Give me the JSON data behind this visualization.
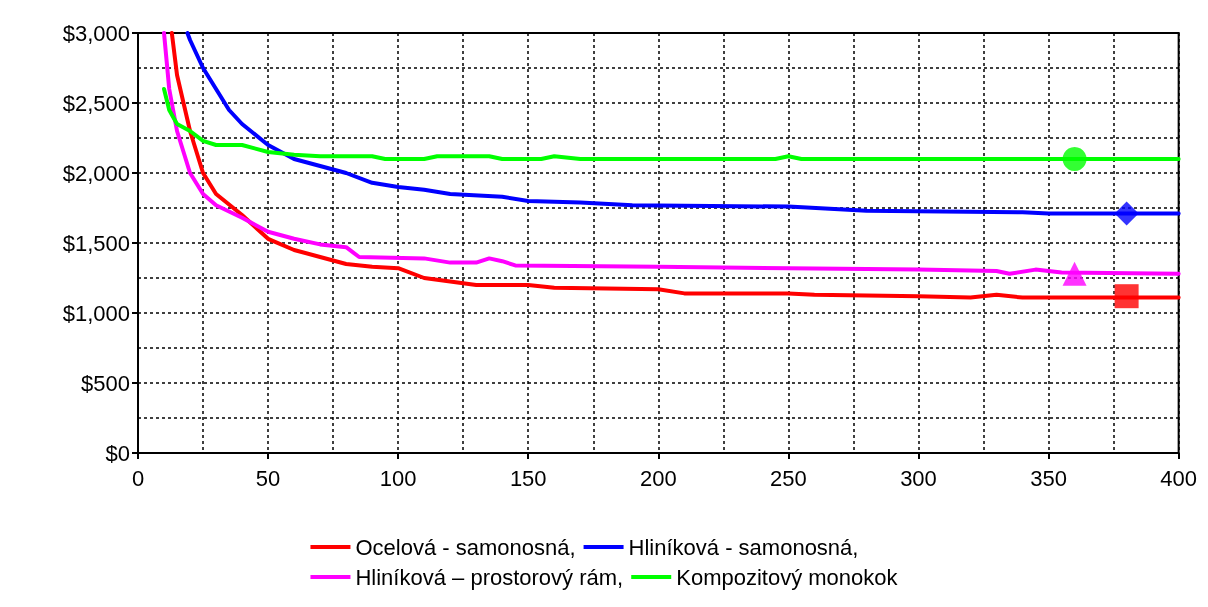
{
  "chart_data": {
    "type": "line",
    "xlim": [
      0,
      400
    ],
    "ylim": [
      0,
      3000
    ],
    "xticks": [
      0,
      {
        "value": 25,
        "label": null
      },
      50,
      {
        "value": 75,
        "label": null
      },
      100,
      {
        "value": 125,
        "label": null
      },
      150,
      {
        "value": 175,
        "label": null
      },
      200,
      {
        "value": 225,
        "label": null
      },
      250,
      {
        "value": 275,
        "label": null
      },
      300,
      {
        "value": 325,
        "label": null
      },
      350,
      {
        "value": 375,
        "label": null
      },
      400
    ],
    "yticks": [
      {
        "value": 0,
        "label": "$0"
      },
      {
        "value": 250,
        "label": null
      },
      {
        "value": 500,
        "label": "$500"
      },
      {
        "value": 750,
        "label": null
      },
      {
        "value": 1000,
        "label": "$1,000"
      },
      {
        "value": 1250,
        "label": null
      },
      {
        "value": 1500,
        "label": "$1,500"
      },
      {
        "value": 1750,
        "label": null
      },
      {
        "value": 2000,
        "label": "$2,000"
      },
      {
        "value": 2250,
        "label": null
      },
      {
        "value": 2500,
        "label": "$2,500"
      },
      {
        "value": 2750,
        "label": null
      },
      {
        "value": 3000,
        "label": "$3,000"
      }
    ],
    "grid": true,
    "legend": "bottom",
    "line_style": "solid",
    "marker": "none",
    "series": [
      {
        "name": "Ocelová - samonosná,",
        "color": "#ff0000",
        "x": [
          13,
          15,
          20,
          25,
          30,
          40,
          50,
          60,
          70,
          80,
          90,
          100,
          110,
          130,
          150,
          160,
          200,
          210,
          250,
          260,
          300,
          320,
          330,
          340,
          400
        ],
        "values": [
          3000,
          2700,
          2300,
          2000,
          1850,
          1700,
          1530,
          1450,
          1400,
          1350,
          1330,
          1320,
          1250,
          1200,
          1200,
          1180,
          1170,
          1140,
          1140,
          1130,
          1120,
          1110,
          1130,
          1110,
          1110
        ]
      },
      {
        "name": "Hliníková - samonosná,",
        "color": "#0000ff",
        "x": [
          19,
          20,
          25,
          30,
          35,
          40,
          50,
          60,
          70,
          80,
          90,
          100,
          110,
          120,
          140,
          150,
          170,
          190,
          250,
          280,
          340,
          350,
          400
        ],
        "values": [
          3000,
          2950,
          2750,
          2600,
          2450,
          2350,
          2200,
          2100,
          2050,
          2000,
          1930,
          1900,
          1880,
          1850,
          1830,
          1800,
          1790,
          1770,
          1760,
          1730,
          1720,
          1710,
          1710
        ]
      },
      {
        "name": "Hliníková – prostorový rám,",
        "color": "#ff00ff",
        "x": [
          10,
          12,
          15,
          20,
          25,
          30,
          40,
          50,
          60,
          70,
          80,
          85,
          110,
          120,
          130,
          135,
          140,
          145,
          200,
          250,
          300,
          330,
          335,
          345,
          355,
          400
        ],
        "values": [
          3000,
          2600,
          2300,
          2000,
          1850,
          1770,
          1680,
          1580,
          1530,
          1490,
          1470,
          1400,
          1390,
          1360,
          1360,
          1390,
          1370,
          1340,
          1330,
          1320,
          1310,
          1300,
          1280,
          1310,
          1290,
          1280
        ]
      },
      {
        "name": "Kompozitový monokok",
        "color": "#00ff00",
        "x": [
          10,
          12,
          15,
          20,
          25,
          30,
          40,
          50,
          60,
          70,
          90,
          95,
          110,
          115,
          135,
          140,
          155,
          160,
          170,
          245,
          250,
          255,
          400
        ],
        "values": [
          2600,
          2450,
          2350,
          2300,
          2230,
          2200,
          2200,
          2150,
          2130,
          2120,
          2120,
          2100,
          2100,
          2120,
          2120,
          2100,
          2100,
          2120,
          2100,
          2100,
          2120,
          2100,
          2100
        ]
      },
      {
        "type": "scatter",
        "marker": "square",
        "color": "#ff0000",
        "x": [
          380
        ],
        "values": [
          1120
        ]
      },
      {
        "type": "scatter",
        "marker": "diamond",
        "color": "#0000ff",
        "x": [
          380
        ],
        "values": [
          1710
        ]
      },
      {
        "type": "scatter",
        "marker": "triangle",
        "color": "#ff00ff",
        "x": [
          360
        ],
        "values": [
          1280
        ]
      },
      {
        "type": "scatter",
        "marker": "circle",
        "color": "#00ff00",
        "x": [
          360
        ],
        "values": [
          2100
        ]
      }
    ]
  }
}
